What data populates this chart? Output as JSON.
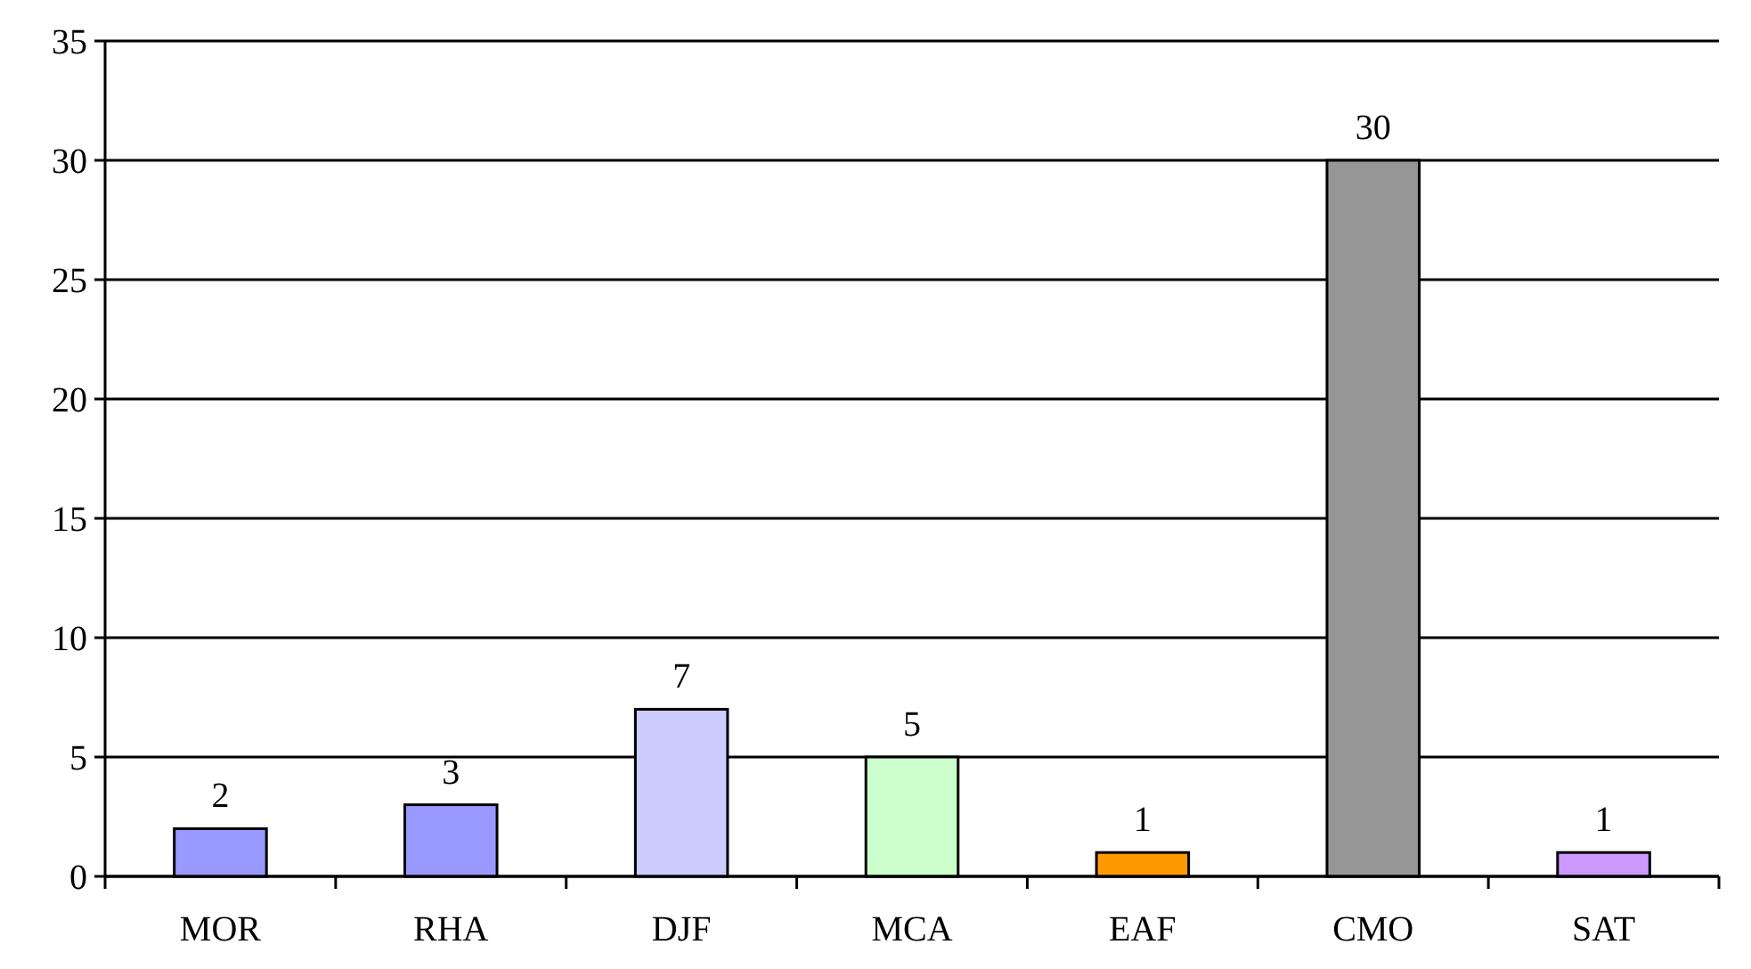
{
  "chart_data": {
    "type": "bar",
    "categories": [
      "MOR",
      "RHA",
      "DJF",
      "MCA",
      "EAF",
      "CMO",
      "SAT"
    ],
    "values": [
      2,
      3,
      7,
      5,
      1,
      30,
      1
    ],
    "colors": [
      "#9999ff",
      "#9999ff",
      "#ccccff",
      "#ccffcc",
      "#ff9900",
      "#969696",
      "#cc99ff"
    ],
    "ylim": [
      0,
      35
    ],
    "yticks": [
      0,
      5,
      10,
      15,
      20,
      25,
      30,
      35
    ],
    "grid": "y",
    "data_labels": true
  }
}
